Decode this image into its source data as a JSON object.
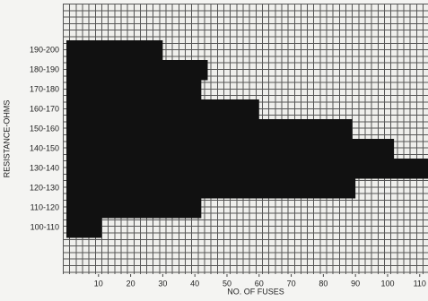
{
  "chart_data": {
    "type": "bar",
    "orientation": "horizontal",
    "xlabel": "NO. OF FUSES",
    "ylabel": "RESISTANCE-OHMS",
    "categories": [
      "190-200",
      "180-190",
      "170-180",
      "160-170",
      "150-160",
      "140-150",
      "130-140",
      "120-130",
      "110-120",
      "100-110"
    ],
    "values": [
      30,
      44,
      42,
      60,
      89,
      102,
      113,
      90,
      42,
      11
    ],
    "color": "#111111",
    "xlim": [
      0,
      113
    ],
    "xticks": [
      10,
      20,
      30,
      40,
      50,
      60,
      70,
      80,
      90,
      100,
      110
    ]
  }
}
